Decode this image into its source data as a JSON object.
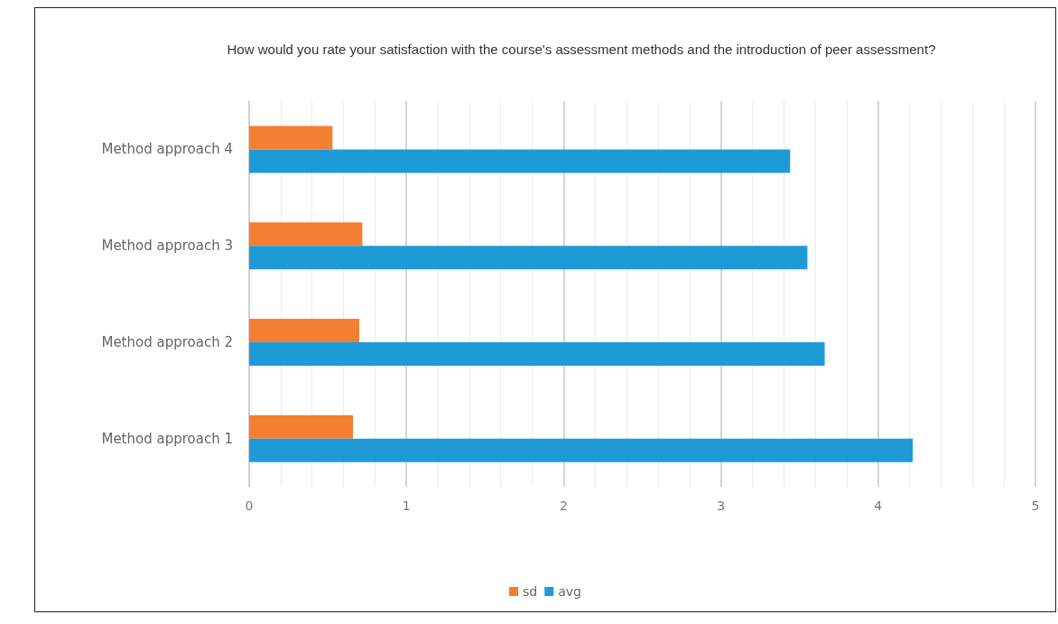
{
  "chart_data": {
    "type": "bar",
    "orientation": "horizontal",
    "title": "How would you rate your satisfaction with the course's assessment methods and the introduction of peer assessment?",
    "categories": [
      "Method approach 4",
      "Method approach 3",
      "Method approach 2",
      "Method approach 1"
    ],
    "series": [
      {
        "name": "sd",
        "color": "#f47f30",
        "values": [
          0.53,
          0.72,
          0.7,
          0.66
        ]
      },
      {
        "name": "avg",
        "color": "#1e9bd7",
        "values": [
          3.44,
          3.55,
          3.66,
          4.22
        ]
      }
    ],
    "xlim": [
      0,
      5
    ],
    "xticks": [
      0,
      1,
      2,
      3,
      4,
      5
    ],
    "grid": "x",
    "legend": "bottom"
  }
}
